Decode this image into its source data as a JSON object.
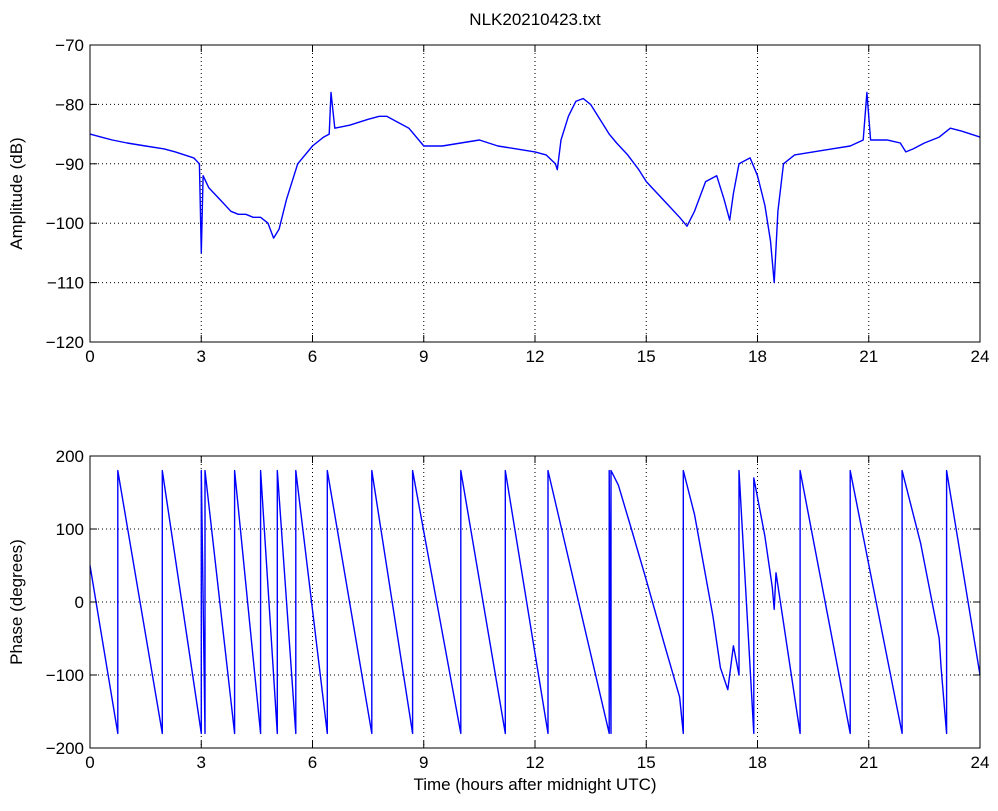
{
  "chart_data": [
    {
      "type": "line",
      "title": "NLK20210423.txt",
      "xlabel": "",
      "ylabel": "Amplitude (dB)",
      "xlim": [
        0,
        24
      ],
      "ylim": [
        -120,
        -70
      ],
      "xticks": [
        0,
        3,
        6,
        9,
        12,
        15,
        18,
        21,
        24
      ],
      "yticks": [
        -120,
        -110,
        -100,
        -90,
        -80,
        -70
      ],
      "xtick_labels": [
        "0",
        "3",
        "6",
        "9",
        "12",
        "15",
        "18",
        "21",
        "24"
      ],
      "ytick_labels": [
        "−120",
        "−110",
        "−100",
        "−90",
        "−80",
        "−70"
      ],
      "grid": true,
      "series": [
        {
          "color": "#0000ff",
          "x": [
            0,
            0.3,
            0.6,
            1.0,
            1.5,
            2.0,
            2.3,
            2.8,
            2.95,
            3.0,
            3.05,
            3.2,
            3.5,
            3.8,
            4.0,
            4.2,
            4.4,
            4.6,
            4.8,
            4.95,
            5.1,
            5.3,
            5.6,
            6.0,
            6.3,
            6.45,
            6.5,
            6.6,
            7.0,
            7.5,
            7.8,
            8.0,
            8.3,
            8.6,
            9.0,
            9.5,
            10.0,
            10.5,
            11.0,
            11.5,
            12.0,
            12.3,
            12.55,
            12.6,
            12.7,
            12.9,
            13.1,
            13.3,
            13.5,
            13.8,
            14.0,
            14.2,
            14.5,
            14.8,
            15.0,
            15.3,
            15.6,
            15.9,
            16.1,
            16.3,
            16.6,
            16.9,
            17.1,
            17.25,
            17.35,
            17.5,
            17.8,
            18.0,
            18.2,
            18.35,
            18.45,
            18.55,
            18.7,
            19.0,
            19.5,
            20.0,
            20.5,
            20.85,
            20.95,
            21.05,
            21.5,
            21.85,
            22.0,
            22.2,
            22.5,
            22.9,
            23.2,
            23.5,
            24.0
          ],
          "y": [
            -85,
            -85.5,
            -86,
            -86.5,
            -87,
            -87.5,
            -88,
            -89,
            -90,
            -105,
            -92,
            -94,
            -96,
            -98,
            -98.5,
            -98.5,
            -99,
            -99,
            -100,
            -102.5,
            -101,
            -96,
            -90,
            -87,
            -85.5,
            -85,
            -78,
            -84,
            -83.5,
            -82.5,
            -82,
            -82,
            -83,
            -84,
            -87,
            -87,
            -86.5,
            -86,
            -87,
            -87.5,
            -88,
            -88.5,
            -90,
            -91,
            -86,
            -82,
            -79.5,
            -79,
            -80,
            -83,
            -85,
            -86.5,
            -88.5,
            -91,
            -93,
            -95,
            -97,
            -99,
            -100.5,
            -98,
            -93,
            -92,
            -96,
            -99.5,
            -95,
            -90,
            -89,
            -92,
            -97,
            -103,
            -110,
            -98,
            -90,
            -88.5,
            -88,
            -87.5,
            -87,
            -86,
            -78,
            -86,
            -86,
            -86.5,
            -88,
            -87.5,
            -86.5,
            -85.5,
            -84,
            -84.5,
            -85.5
          ]
        }
      ]
    },
    {
      "type": "line",
      "title": "",
      "xlabel": "Time (hours after midnight UTC)",
      "ylabel": "Phase (degrees)",
      "xlim": [
        0,
        24
      ],
      "ylim": [
        -200,
        200
      ],
      "xticks": [
        0,
        3,
        6,
        9,
        12,
        15,
        18,
        21,
        24
      ],
      "yticks": [
        -200,
        -100,
        0,
        100,
        200
      ],
      "xtick_labels": [
        "0",
        "3",
        "6",
        "9",
        "12",
        "15",
        "18",
        "21",
        "24"
      ],
      "ytick_labels": [
        "−200",
        "−100",
        "0",
        "100",
        "200"
      ],
      "grid": true,
      "series": [
        {
          "color": "#0000ff",
          "x": [
            0,
            0.75,
            0.75,
            1.95,
            1.95,
            3.0,
            3.0,
            3.1,
            3.1,
            3.9,
            3.9,
            4.6,
            4.6,
            5.05,
            5.05,
            5.55,
            5.55,
            6.4,
            6.4,
            7.6,
            7.6,
            8.7,
            8.7,
            10.0,
            10.0,
            11.2,
            11.2,
            12.35,
            12.35,
            14.0,
            14.0,
            14.05,
            14.05,
            14.25,
            14.6,
            15.0,
            15.5,
            15.9,
            16.0,
            16.0,
            16.3,
            16.8,
            17.0,
            17.2,
            17.35,
            17.5,
            17.5,
            17.9,
            17.9,
            18.2,
            18.4,
            18.45,
            18.5,
            19.15,
            19.15,
            20.5,
            20.5,
            21.9,
            21.9,
            22.4,
            22.9,
            22.95,
            23.1,
            23.1,
            24.0
          ],
          "y": [
            50,
            -180,
            180,
            -180,
            180,
            -180,
            180,
            -180,
            180,
            -180,
            180,
            -180,
            180,
            -180,
            180,
            -180,
            180,
            -180,
            180,
            -180,
            180,
            -180,
            180,
            -180,
            180,
            -180,
            180,
            -180,
            180,
            -180,
            180,
            -180,
            180,
            160,
            100,
            30,
            -60,
            -130,
            -180,
            180,
            120,
            -20,
            -90,
            -120,
            -60,
            -100,
            180,
            -180,
            170,
            90,
            20,
            -10,
            40,
            -180,
            180,
            -180,
            180,
            -180,
            180,
            80,
            -50,
            -90,
            -180,
            180,
            -100
          ]
        }
      ]
    }
  ]
}
